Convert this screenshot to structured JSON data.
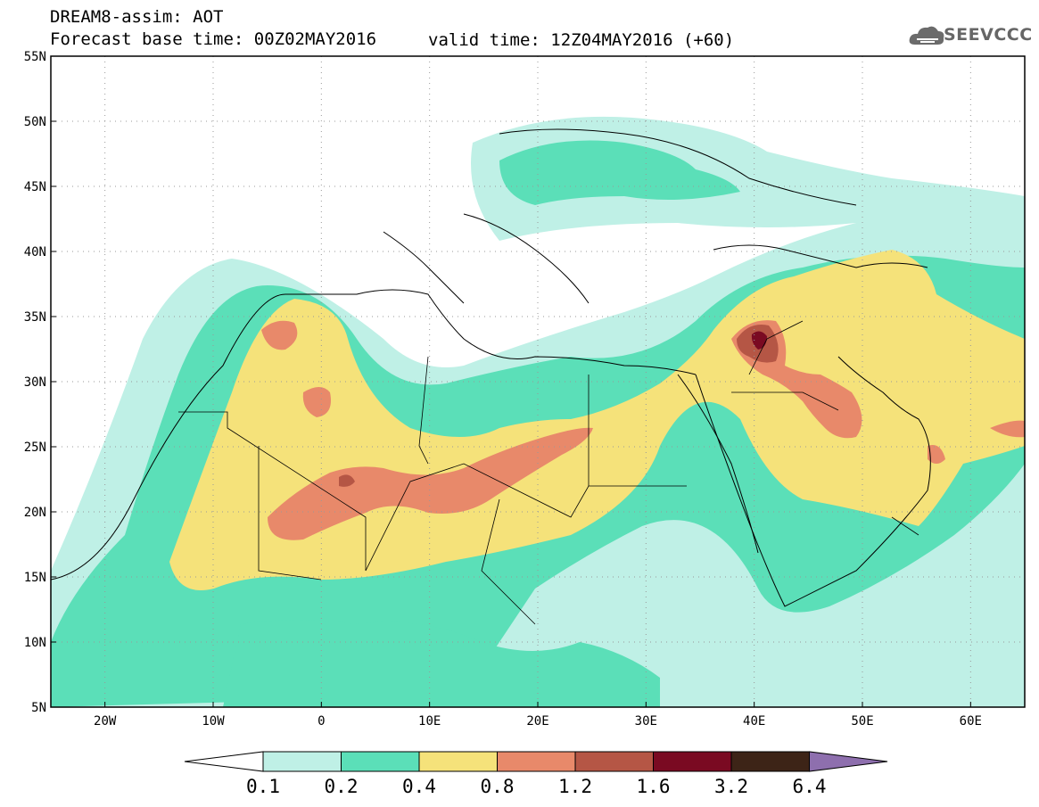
{
  "header": {
    "title_line1": "DREAM8-assim: AOT",
    "title_line2": "Forecast base time: 00Z02MAY2016",
    "valid_time": "valid time: 12Z04MAY2016 (+60)",
    "logo_text": "SEEVCCC"
  },
  "map": {
    "lat_labels": [
      "55N",
      "50N",
      "45N",
      "40N",
      "35N",
      "30N",
      "25N",
      "20N",
      "15N",
      "10N",
      "5N"
    ],
    "lon_labels": [
      "20W",
      "10W",
      "0",
      "10E",
      "20E",
      "30E",
      "40E",
      "50E",
      "60E"
    ],
    "lat_range": [
      5,
      55
    ],
    "lon_range": [
      -25,
      65
    ],
    "grid": "dotted"
  },
  "colorbar": {
    "labels": [
      "0.1",
      "0.2",
      "0.4",
      "0.8",
      "1.2",
      "1.6",
      "3.2",
      "6.4"
    ],
    "colors": [
      "#bff0e6",
      "#5bdfb8",
      "#f5e27a",
      "#e8896a",
      "#b55645",
      "#7a0a22",
      "#3d2417",
      "#8e6fae"
    ]
  }
}
